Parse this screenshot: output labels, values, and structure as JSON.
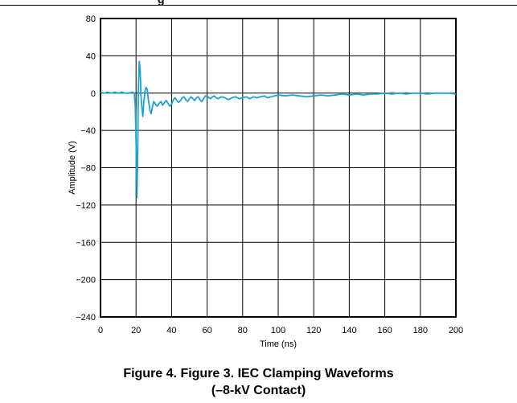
{
  "header": {
    "fragment": "g"
  },
  "caption": {
    "line1": "Figure 4. Figure 3. IEC Clamping Waveforms",
    "line2": "(–8-kV Contact)"
  },
  "colors": {
    "trace": "#1aa3d4",
    "grid": "#000000"
  },
  "chart_data": {
    "type": "line",
    "xlabel": "Time (ns)",
    "ylabel": "Amplitude (V)",
    "xlim": [
      0,
      200
    ],
    "ylim": [
      -240,
      80
    ],
    "grid": true,
    "xticks": [
      0,
      20,
      40,
      60,
      80,
      100,
      120,
      140,
      160,
      180,
      200
    ],
    "yticks": [
      80,
      40,
      0,
      -40,
      -80,
      -120,
      -160,
      -200,
      -240
    ],
    "xtick_labels": [
      "0",
      "20",
      "40",
      "60",
      "80",
      "100",
      "120",
      "140",
      "160",
      "180",
      "200"
    ],
    "ytick_labels": [
      "80",
      "40",
      "0",
      "−40",
      "−80",
      "−120",
      "−160",
      "−200",
      "−240"
    ],
    "series": [
      {
        "x": [
          0,
          2,
          4,
          6,
          8,
          10,
          12,
          14,
          16,
          18,
          19,
          19.6,
          20.1,
          20.5,
          20.9,
          21.3,
          21.8,
          22.3,
          22.8,
          23.2,
          23.8,
          24.4,
          25,
          25.6,
          26.3,
          27,
          27.8,
          28.5,
          29.3,
          30,
          31,
          32,
          33,
          34,
          35,
          36,
          37,
          38,
          39,
          40,
          41,
          42,
          43,
          44,
          45,
          46,
          47,
          48,
          49,
          50,
          51,
          52,
          53,
          54,
          55,
          56,
          57,
          58,
          59,
          60,
          61,
          62,
          63,
          64,
          65,
          66,
          68,
          70,
          72,
          74,
          76,
          78,
          80,
          82,
          84,
          86,
          88,
          90,
          92,
          94,
          96,
          98,
          100,
          104,
          108,
          112,
          116,
          120,
          124,
          128,
          132,
          136,
          140,
          144,
          148,
          152,
          156,
          160,
          164,
          168,
          172,
          176,
          180,
          184,
          188,
          192,
          196,
          200
        ],
        "y": [
          1,
          0,
          1,
          0,
          1,
          0,
          1,
          0,
          0,
          1,
          0,
          -15,
          -60,
          -112,
          -70,
          5,
          34,
          25,
          -3,
          -14,
          -25,
          -10,
          2,
          6,
          4,
          -8,
          -18,
          -22,
          -14,
          -9,
          -12,
          -14,
          -11,
          -9,
          -13,
          -10,
          -8,
          -11,
          -14,
          -12,
          -7,
          -5,
          -8,
          -10,
          -8,
          -5,
          -4,
          -7,
          -9,
          -6,
          -4,
          -6,
          -8,
          -5,
          -4,
          -7,
          -9,
          -6,
          -3,
          -3,
          -5,
          -6,
          -4,
          -3,
          -5,
          -6,
          -4,
          -5,
          -7,
          -5,
          -4,
          -6,
          -5,
          -4,
          -6,
          -4,
          -5,
          -4,
          -3,
          -5,
          -4,
          -3,
          -2,
          -3,
          -2,
          -3,
          -4,
          -3,
          -2,
          -3,
          -2,
          -1,
          -2,
          -1,
          -2,
          -1,
          -1,
          0,
          -1,
          0,
          -1,
          0,
          0,
          -1,
          0,
          0,
          0,
          -1
        ]
      }
    ]
  }
}
